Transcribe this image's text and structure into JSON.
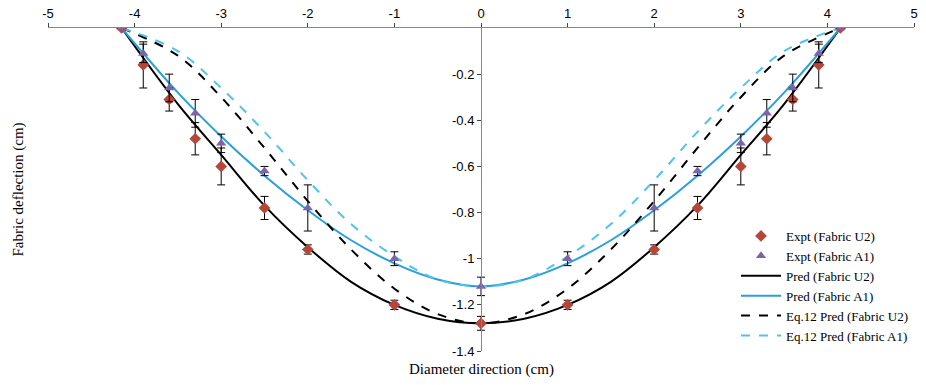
{
  "chart_data": {
    "type": "line",
    "x_label": "Diameter direction (cm)",
    "y_label": "Fabric deflection (cm)",
    "xlim": [
      -5,
      5
    ],
    "xticks": [
      -5,
      -4,
      -3,
      -2,
      -1,
      0,
      1,
      2,
      3,
      4,
      5
    ],
    "ylim": [
      -1.4,
      0
    ],
    "yticks": [
      -1.4,
      -1.2,
      -1,
      -0.8,
      -0.6,
      -0.4,
      -0.2
    ],
    "grid": false,
    "legend": "bottom right",
    "series": [
      {
        "name": "Expt (Fabric U2)",
        "type": "scatter",
        "marker": "diamond",
        "color": "#b5473a",
        "x": [
          -4.15,
          -3.9,
          -3.6,
          -3.3,
          -3,
          -2.5,
          -2,
          -1,
          0,
          1,
          2,
          2.5,
          3,
          3.3,
          3.6,
          3.9,
          4.15
        ],
        "values": [
          0,
          -0.16,
          -0.31,
          -0.48,
          -0.6,
          -0.78,
          -0.96,
          -1.2,
          -1.28,
          -1.2,
          -0.96,
          -0.78,
          -0.6,
          -0.48,
          -0.31,
          -0.16,
          0
        ],
        "errors": [
          0,
          0.1,
          0.05,
          0.07,
          0.08,
          0.05,
          0.02,
          0.02,
          0.03,
          0.02,
          0.02,
          0.05,
          0.08,
          0.07,
          0.05,
          0.1,
          0
        ]
      },
      {
        "name": "Expt (Fabric A1)",
        "type": "scatter",
        "marker": "triangle-up",
        "color": "#7e63a8",
        "x": [
          -4.15,
          -3.9,
          -3.6,
          -3.3,
          -3,
          -2.5,
          -2,
          -1,
          0,
          1,
          2,
          2.5,
          3,
          3.3,
          3.6,
          3.9,
          4.15
        ],
        "values": [
          0,
          -0.11,
          -0.26,
          -0.37,
          -0.5,
          -0.62,
          -0.78,
          -1,
          -1.12,
          -1,
          -0.78,
          -0.62,
          -0.5,
          -0.37,
          -0.26,
          -0.11,
          0
        ],
        "errors": [
          0,
          0.04,
          0.06,
          0.06,
          0.04,
          0.02,
          0.1,
          0.03,
          0.04,
          0.03,
          0.1,
          0.02,
          0.04,
          0.06,
          0.06,
          0.04,
          0
        ]
      },
      {
        "name": "Pred (Fabric U2)",
        "type": "line",
        "line_style": "solid",
        "color": "#000000",
        "x": [
          -4.15,
          -3.5,
          -3,
          -2.5,
          -2,
          -1.5,
          -1,
          -0.5,
          0,
          0.5,
          1,
          1.5,
          2,
          2.5,
          3,
          3.5,
          4.15
        ],
        "values": [
          0,
          -0.33,
          -0.55,
          -0.77,
          -0.95,
          -1.1,
          -1.2,
          -1.26,
          -1.28,
          -1.26,
          -1.2,
          -1.1,
          -0.95,
          -0.77,
          -0.55,
          -0.33,
          0
        ]
      },
      {
        "name": "Pred (Fabric A1)",
        "type": "line",
        "line_style": "solid",
        "color": "#2aa0d8",
        "x": [
          -4.15,
          -3.5,
          -3,
          -2.5,
          -2,
          -1.5,
          -1,
          -0.5,
          0,
          0.5,
          1,
          1.5,
          2,
          2.5,
          3,
          3.5,
          4.15
        ],
        "values": [
          0,
          -0.28,
          -0.47,
          -0.64,
          -0.79,
          -0.92,
          -1.02,
          -1.09,
          -1.12,
          -1.09,
          -1.02,
          -0.92,
          -0.79,
          -0.64,
          -0.47,
          -0.28,
          0
        ]
      },
      {
        "name": "Eq.12 Pred (Fabric U2)",
        "type": "line",
        "line_style": "dash",
        "color": "#000000",
        "x": [
          -4.15,
          -3.5,
          -3,
          -2.5,
          -2,
          -1.5,
          -1,
          -0.5,
          0,
          0.5,
          1,
          1.5,
          2,
          2.5,
          3,
          3.5,
          4.15
        ],
        "values": [
          0,
          -0.12,
          -0.3,
          -0.52,
          -0.75,
          -0.96,
          -1.13,
          -1.24,
          -1.28,
          -1.24,
          -1.13,
          -0.96,
          -0.75,
          -0.52,
          -0.3,
          -0.12,
          0
        ]
      },
      {
        "name": "Eq.12 Pred (Fabric A1)",
        "type": "line",
        "line_style": "dash",
        "color": "#4fc3f0",
        "x": [
          -4.15,
          -3.5,
          -3,
          -2.5,
          -2,
          -1.5,
          -1,
          -0.5,
          0,
          0.5,
          1,
          1.5,
          2,
          2.5,
          3,
          3.5,
          4.15
        ],
        "values": [
          0,
          -0.1,
          -0.26,
          -0.45,
          -0.66,
          -0.85,
          -0.99,
          -1.09,
          -1.12,
          -1.09,
          -0.99,
          -0.85,
          -0.66,
          -0.45,
          -0.26,
          -0.1,
          0
        ]
      }
    ]
  }
}
